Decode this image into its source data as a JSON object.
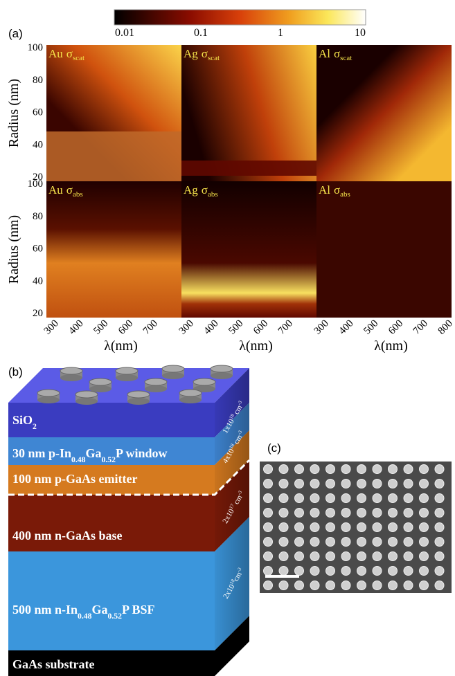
{
  "colorbar": {
    "ticks": [
      "0.01",
      "0.1",
      "1",
      "10"
    ]
  },
  "panel_a": {
    "label": "(a)",
    "y_axis_label": "Radius (nm)",
    "y_ticks": [
      "100",
      "80",
      "60",
      "40",
      "20"
    ],
    "x_axis_label": "λ(nm)",
    "x_ticks": [
      "300",
      "400",
      "500",
      "600",
      "700"
    ],
    "x_ticks_last": [
      "300",
      "400",
      "500",
      "600",
      "700",
      "800"
    ],
    "maps": [
      {
        "metal": "Au",
        "symbol": "σ",
        "sub": "scat"
      },
      {
        "metal": "Ag",
        "symbol": "σ",
        "sub": "scat"
      },
      {
        "metal": "Al",
        "symbol": "σ",
        "sub": "scat"
      },
      {
        "metal": "Au",
        "symbol": "σ",
        "sub": "abs"
      },
      {
        "metal": "Ag",
        "symbol": "σ",
        "sub": "abs"
      },
      {
        "metal": "Al",
        "symbol": "σ",
        "sub": "abs"
      }
    ]
  },
  "panel_b": {
    "label": "(b)",
    "layers": [
      [
        {
          "t": "SiO"
        },
        {
          "sub": "2"
        }
      ],
      [
        {
          "t": "30 nm p-In"
        },
        {
          "sub": "0.48"
        },
        {
          "t": "Ga"
        },
        {
          "sub": "0.52"
        },
        {
          "t": "P window"
        }
      ],
      [
        {
          "t": "100 nm p-GaAs emitter"
        }
      ],
      [
        {
          "t": "400 nm n-GaAs base"
        }
      ],
      [
        {
          "t": "500 nm n-In"
        },
        {
          "sub": "0.48"
        },
        {
          "t": "Ga"
        },
        {
          "sub": "0.52"
        },
        {
          "t": "P BSF"
        }
      ],
      [
        {
          "t": "GaAs substrate"
        }
      ]
    ],
    "dopings": [
      [
        {
          "t": "1x10"
        },
        {
          "sup": "18"
        },
        {
          "t": " cm"
        },
        {
          "sup": "-3"
        }
      ],
      [
        {
          "t": "4x10"
        },
        {
          "sup": "18"
        },
        {
          "t": " cm"
        },
        {
          "sup": "-3"
        }
      ],
      [
        {
          "t": "2x10"
        },
        {
          "sup": "17"
        },
        {
          "t": " cm"
        },
        {
          "sup": "-3"
        }
      ],
      [
        {
          "t": "2x10"
        },
        {
          "sup": "18"
        },
        {
          "t": "cm"
        },
        {
          "sup": "-3"
        }
      ]
    ]
  },
  "panel_c": {
    "label": "(c)"
  }
}
